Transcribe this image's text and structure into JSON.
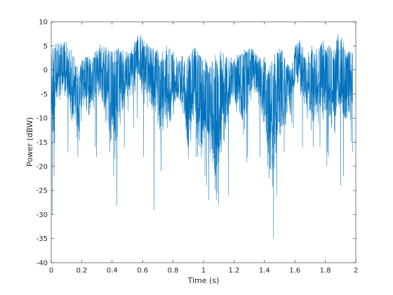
{
  "chart_data": {
    "type": "line",
    "title": "",
    "xlabel": "Time (s)",
    "ylabel": "Power (dBW)",
    "xlim": [
      0,
      2
    ],
    "ylim": [
      -40,
      10
    ],
    "xticks": [
      0,
      0.2,
      0.4,
      0.6,
      0.8,
      1,
      1.2,
      1.4,
      1.6,
      1.8,
      2
    ],
    "xtick_labels": [
      "0",
      "0.2",
      "0.4",
      "0.6",
      "0.8",
      "1",
      "1.2",
      "1.4",
      "1.6",
      "1.8",
      "2"
    ],
    "yticks": [
      -40,
      -35,
      -30,
      -25,
      -20,
      -15,
      -10,
      -5,
      0,
      5,
      10
    ],
    "ytick_labels": [
      "-40",
      "-35",
      "-30",
      "-25",
      "-20",
      "-15",
      "-10",
      "-5",
      "0",
      "5",
      "10"
    ],
    "grid": false,
    "legend": "none",
    "series": [
      {
        "color": "#0072BD",
        "envelope_x": [
          0,
          0.01,
          0.02,
          0.04,
          0.05,
          0.06,
          0.08,
          0.1,
          0.12,
          0.14,
          0.16,
          0.18,
          0.2,
          0.22,
          0.24,
          0.26,
          0.28,
          0.3,
          0.32,
          0.34,
          0.36,
          0.38,
          0.4,
          0.42,
          0.44,
          0.46,
          0.48,
          0.5,
          0.52,
          0.54,
          0.56,
          0.58,
          0.6,
          0.62,
          0.64,
          0.66,
          0.68,
          0.7,
          0.72,
          0.74,
          0.76,
          0.78,
          0.8,
          0.82,
          0.84,
          0.86,
          0.88,
          0.9,
          0.92,
          0.94,
          0.96,
          0.98,
          1.0,
          1.02,
          1.04,
          1.06,
          1.08,
          1.1,
          1.12,
          1.14,
          1.16,
          1.18,
          1.2,
          1.22,
          1.24,
          1.26,
          1.28,
          1.3,
          1.32,
          1.34,
          1.36,
          1.38,
          1.4,
          1.42,
          1.44,
          1.46,
          1.48,
          1.5,
          1.52,
          1.54,
          1.56,
          1.58,
          1.6,
          1.62,
          1.64,
          1.66,
          1.68,
          1.7,
          1.72,
          1.74,
          1.76,
          1.78,
          1.8,
          1.82,
          1.84,
          1.86,
          1.88,
          1.9,
          1.92,
          1.94,
          1.96,
          1.98,
          2.0
        ],
        "envelope_max": [
          3,
          5,
          6,
          6.5,
          6.5,
          7,
          6,
          6,
          4,
          4.5,
          2,
          0,
          2,
          3,
          3,
          2,
          3,
          5,
          6,
          5,
          5,
          4,
          4,
          4.5,
          5,
          5,
          4,
          4,
          4,
          5,
          7,
          8,
          7,
          6,
          5,
          5,
          5,
          4,
          3,
          5,
          5.5,
          5,
          4,
          3,
          2,
          3,
          4,
          4,
          4,
          5,
          4,
          3,
          3,
          2,
          2,
          3,
          4,
          5,
          4,
          3,
          2.5,
          3,
          3,
          3,
          4,
          5,
          4,
          4.5,
          4.5,
          3.5,
          3,
          3,
          3,
          2,
          1,
          3,
          4,
          5,
          4,
          2,
          1,
          1,
          5,
          6.5,
          6,
          4,
          3,
          4.5,
          5.5,
          4.5,
          5,
          6,
          7,
          6,
          5,
          5,
          7.5,
          8,
          6,
          4,
          4,
          4
        ],
        "envelope_min": [
          -8,
          -21,
          -12,
          -8,
          -7,
          -8,
          -6,
          -5,
          -10,
          -12,
          -14,
          -16,
          -11,
          -8,
          -10,
          -9,
          -8,
          -7,
          -8,
          -10,
          -12,
          -14,
          -18,
          -22,
          -14,
          -10,
          -8,
          -6,
          -6,
          -5,
          -4,
          -5,
          -6,
          -8,
          -12,
          -10,
          -8,
          -12,
          -14,
          -14,
          -12,
          -15,
          -10,
          -8,
          -9,
          -10,
          -12,
          -20,
          -14,
          -12,
          -15,
          -21,
          -18,
          -14,
          -20,
          -22,
          -28,
          -24,
          -18,
          -14,
          -11,
          -9,
          -8,
          -10,
          -12,
          -14,
          -12,
          -8,
          -6,
          -6,
          -7,
          -10,
          -14,
          -20,
          -25,
          -26,
          -18,
          -14,
          -16,
          -12,
          -10,
          -9,
          -6,
          -5,
          -6,
          -8,
          -10,
          -12,
          -14,
          -12,
          -11,
          -10,
          -12,
          -14,
          -15,
          -14,
          -12,
          -10,
          -13,
          -14,
          -12,
          -10,
          -9
        ],
        "spikes": [
          [
            0.006,
            -30
          ],
          [
            0.018,
            -22
          ],
          [
            0.022,
            -15
          ],
          [
            0.11,
            -17
          ],
          [
            0.175,
            -17
          ],
          [
            0.175,
            -18
          ],
          [
            0.29,
            -16
          ],
          [
            0.298,
            -18
          ],
          [
            0.385,
            -17
          ],
          [
            0.41,
            -22
          ],
          [
            0.43,
            -28
          ],
          [
            0.48,
            -16
          ],
          [
            0.505,
            -8.5
          ],
          [
            0.54,
            -12
          ],
          [
            0.565,
            -10
          ],
          [
            0.605,
            -18
          ],
          [
            0.675,
            -29
          ],
          [
            0.72,
            -21
          ],
          [
            0.95,
            -18
          ],
          [
            0.96,
            -18
          ],
          [
            1.01,
            -22
          ],
          [
            1.02,
            -24
          ],
          [
            1.035,
            -27
          ],
          [
            1.1,
            -28
          ],
          [
            1.165,
            -26
          ],
          [
            1.285,
            -19
          ],
          [
            1.29,
            -18
          ],
          [
            1.37,
            -18
          ],
          [
            1.46,
            -35
          ],
          [
            1.48,
            -26
          ],
          [
            1.53,
            -17
          ],
          [
            1.58,
            -11
          ],
          [
            1.59,
            -12
          ],
          [
            1.65,
            -16
          ],
          [
            1.72,
            -16
          ],
          [
            1.765,
            -16
          ],
          [
            1.815,
            -17
          ],
          [
            1.82,
            -18
          ],
          [
            1.81,
            -20
          ],
          [
            1.84,
            -12
          ],
          [
            1.9,
            -24
          ],
          [
            1.92,
            -22
          ],
          [
            1.97,
            -15
          ],
          [
            1.98,
            -17
          ]
        ]
      }
    ]
  }
}
